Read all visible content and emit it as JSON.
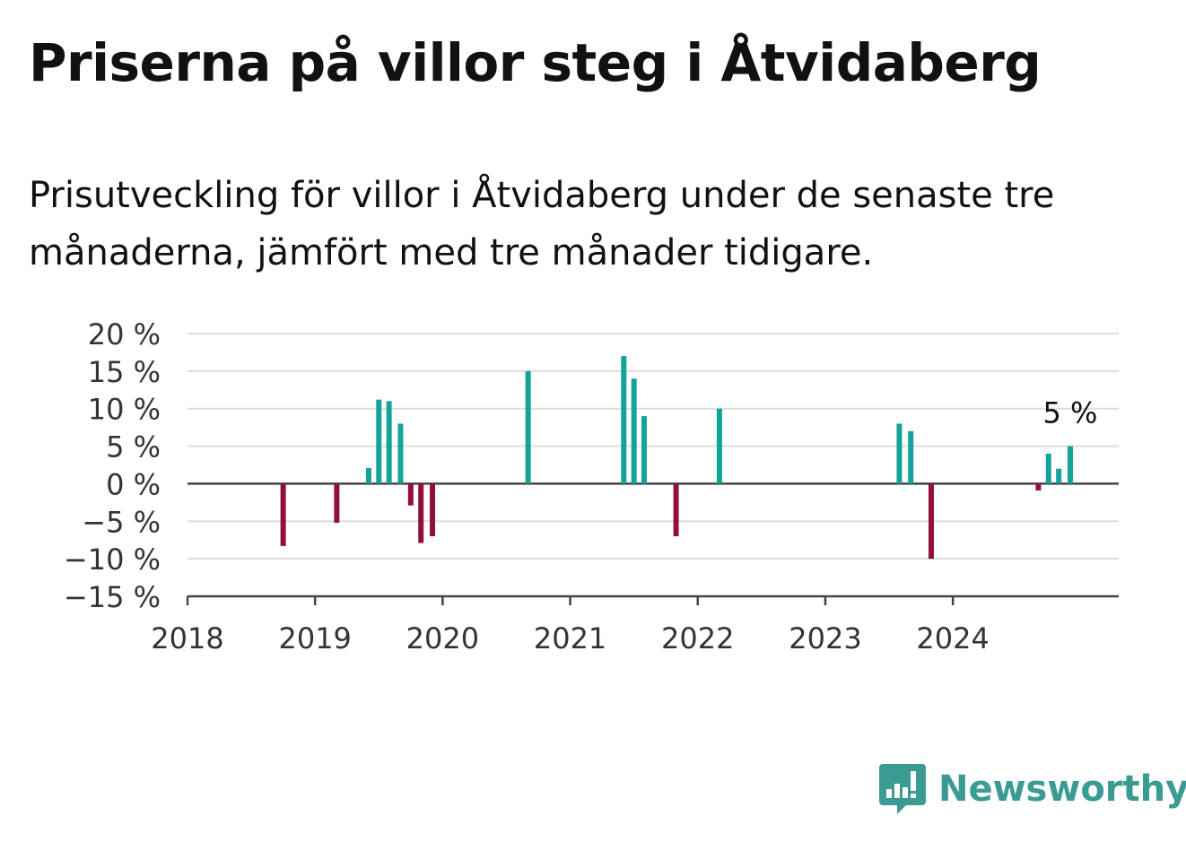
{
  "title": "Priserna på villor steg i Åtvidaberg",
  "subtitle": "Prisutveckling för villor i Åtvidaberg under de senaste tre månaderna, jämfört med tre månader tidigare.",
  "brand": {
    "name": "Newsworthy",
    "icon": "newsworthy-logo-icon"
  },
  "colors": {
    "positive": "#14a398",
    "negative": "#910f3f",
    "grid": "#dddddd",
    "axis": "#444444"
  },
  "chart_data": {
    "type": "bar",
    "title": "",
    "xlabel": "",
    "ylabel": "",
    "ylim": [
      -15,
      20
    ],
    "xlim": [
      2018,
      2025.3
    ],
    "yticks": [
      {
        "value": 20,
        "label": "20 %"
      },
      {
        "value": 15,
        "label": "15 %"
      },
      {
        "value": 10,
        "label": "10 %"
      },
      {
        "value": 5,
        "label": "5 %"
      },
      {
        "value": 0,
        "label": "0 %"
      },
      {
        "value": -5,
        "label": "−5 %"
      },
      {
        "value": -10,
        "label": "−10 %"
      },
      {
        "value": -15,
        "label": "−15 %"
      }
    ],
    "xticks": [
      {
        "value": 2018,
        "label": "2018"
      },
      {
        "value": 2019,
        "label": "2019"
      },
      {
        "value": 2020,
        "label": "2020"
      },
      {
        "value": 2021,
        "label": "2021"
      },
      {
        "value": 2022,
        "label": "2022"
      },
      {
        "value": 2023,
        "label": "2023"
      },
      {
        "value": 2024,
        "label": "2024"
      }
    ],
    "grid": true,
    "points": [
      {
        "x": 2018.75,
        "value": -8.3
      },
      {
        "x": 2019.17,
        "value": -5.2
      },
      {
        "x": 2019.42,
        "value": 2.1
      },
      {
        "x": 2019.5,
        "value": 11.2
      },
      {
        "x": 2019.58,
        "value": 11.0
      },
      {
        "x": 2019.67,
        "value": 8.0
      },
      {
        "x": 2019.75,
        "value": -2.9
      },
      {
        "x": 2019.83,
        "value": -7.9
      },
      {
        "x": 2019.92,
        "value": -7.0
      },
      {
        "x": 2020.67,
        "value": 15.0
      },
      {
        "x": 2021.42,
        "value": 17.0
      },
      {
        "x": 2021.5,
        "value": 14.0
      },
      {
        "x": 2021.58,
        "value": 9.0
      },
      {
        "x": 2021.83,
        "value": -7.0
      },
      {
        "x": 2022.17,
        "value": 10.0
      },
      {
        "x": 2023.58,
        "value": 8.0
      },
      {
        "x": 2023.67,
        "value": 7.0
      },
      {
        "x": 2023.83,
        "value": -10.0
      },
      {
        "x": 2024.67,
        "value": -0.9
      },
      {
        "x": 2024.75,
        "value": 4.0
      },
      {
        "x": 2024.83,
        "value": 2.0
      },
      {
        "x": 2024.92,
        "value": 5.0
      }
    ],
    "annotation": {
      "label": "5 %",
      "x": 2024.92,
      "value": 5.0
    }
  }
}
